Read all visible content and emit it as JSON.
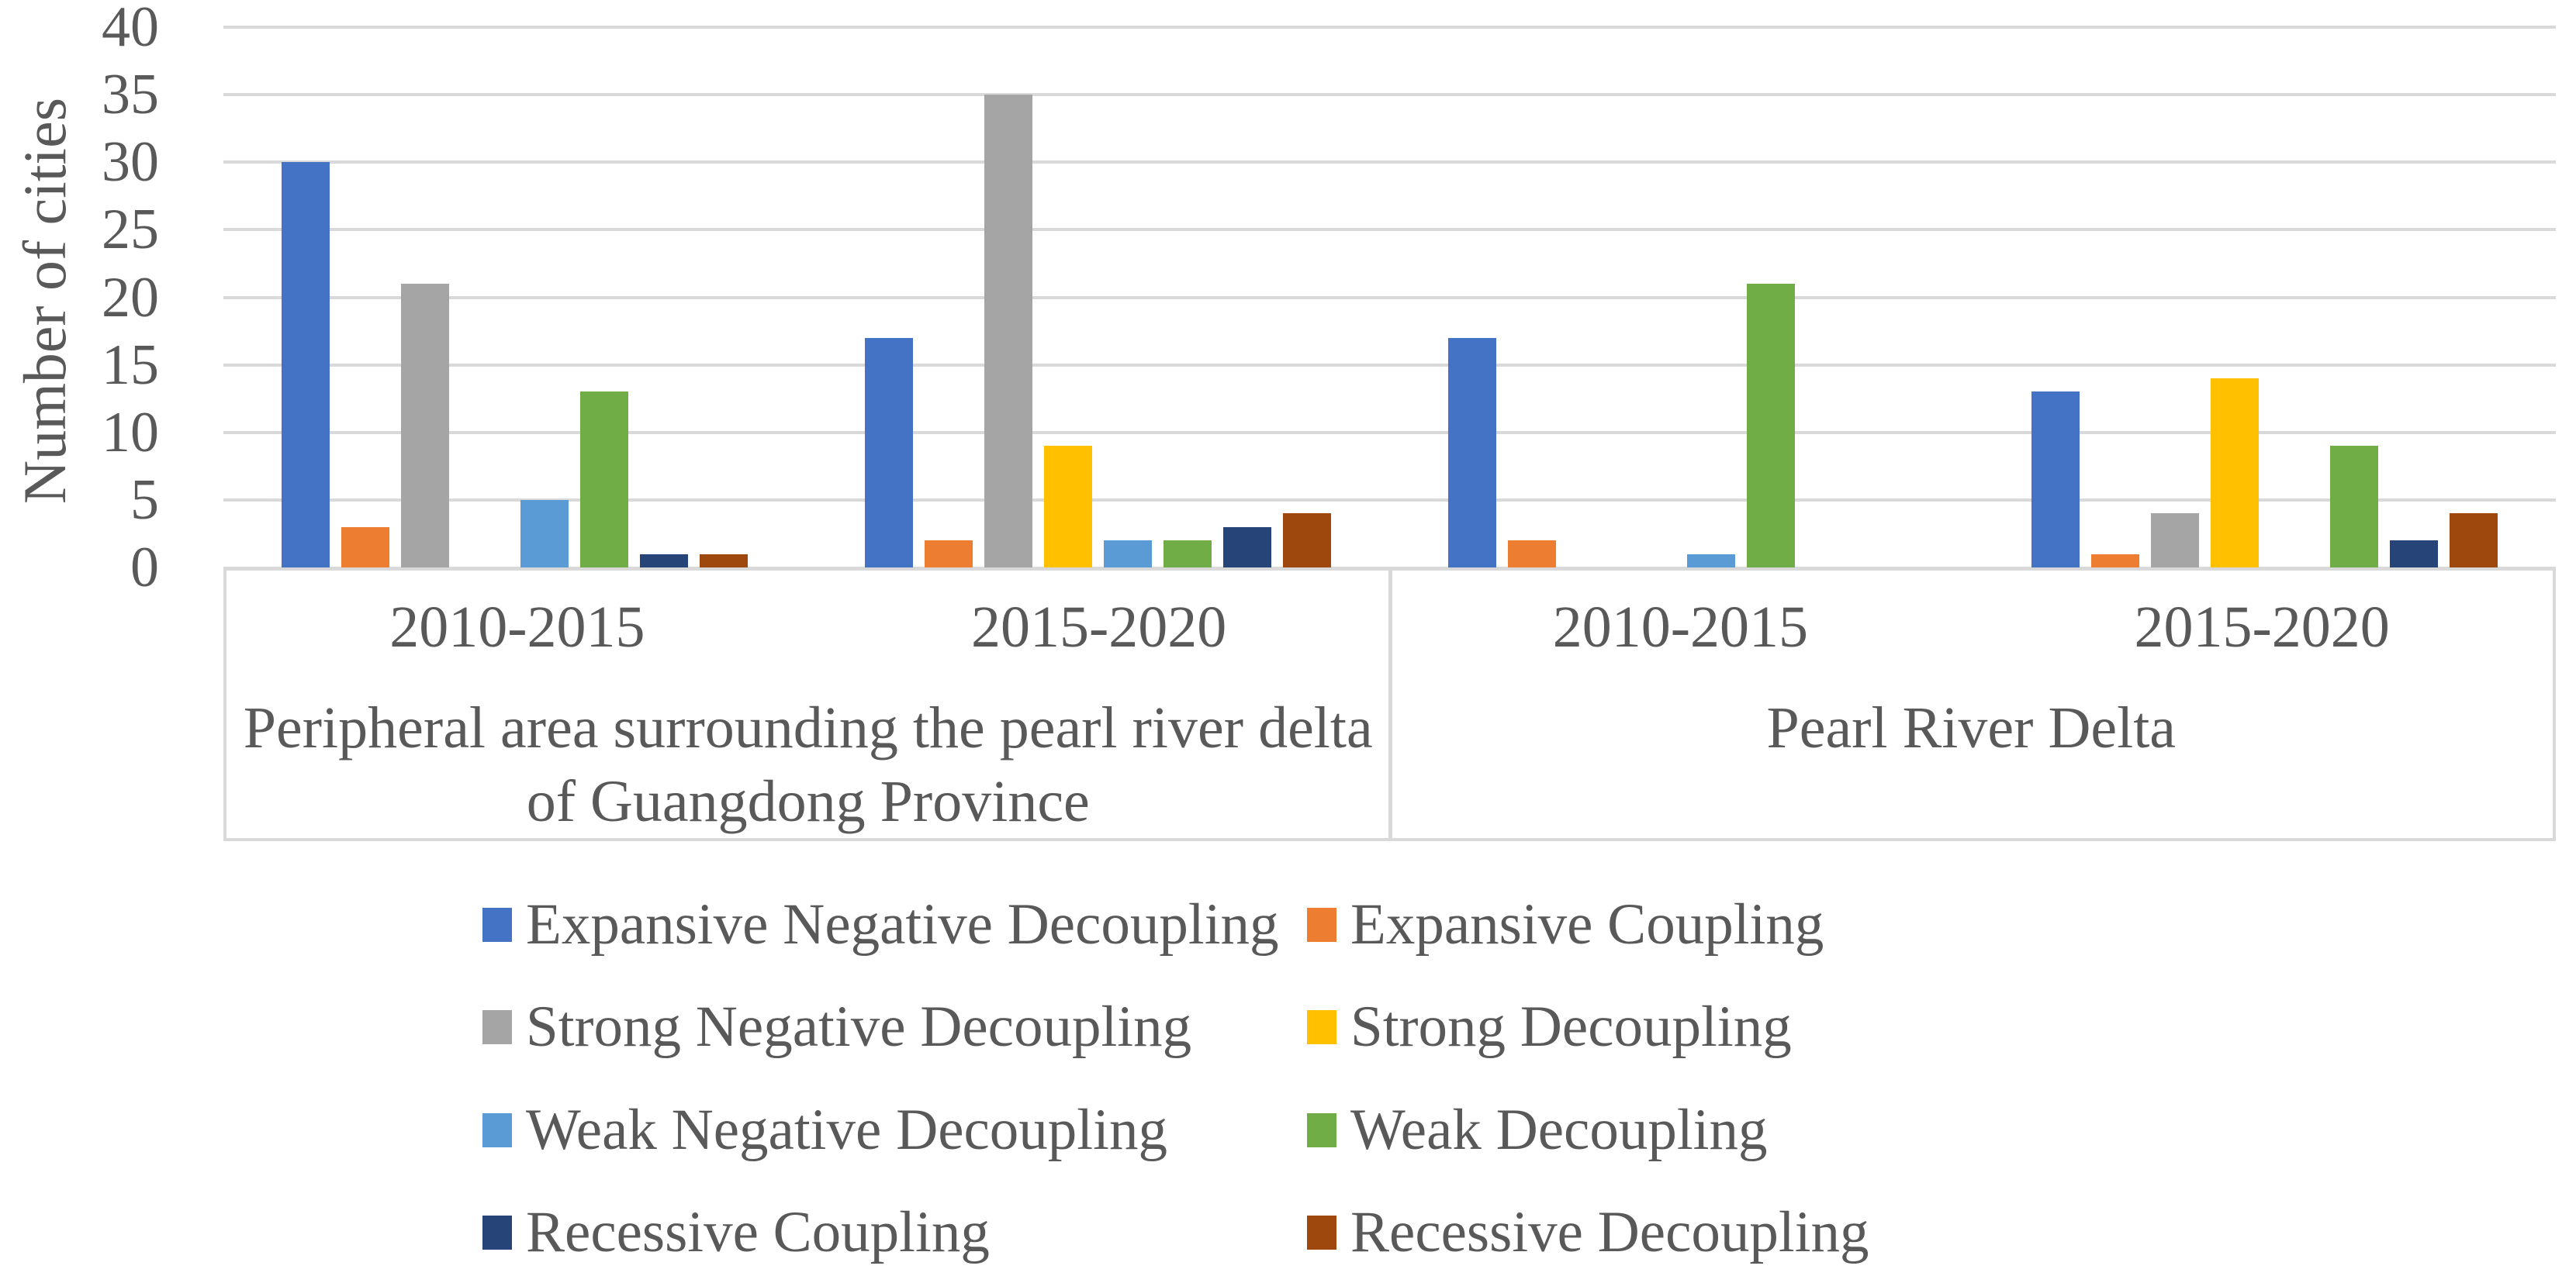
{
  "chart_data": {
    "type": "bar",
    "title": "",
    "ylabel": "Number of cities",
    "ylim": [
      0,
      40
    ],
    "yticks": [
      0,
      5,
      10,
      15,
      20,
      25,
      30,
      35,
      40
    ],
    "grid": "horizontal gridlines every 5, light gray",
    "legend_position": "bottom, 2 columns x 4 rows",
    "period_labels": [
      "2010-2015",
      "2015-2020",
      "2010-2015",
      "2015-2020"
    ],
    "regions": [
      {
        "name": "Peripheral area surrounding the pearl river delta of Guangdong Province",
        "lines": [
          "Peripheral area surrounding the pearl river delta",
          "of Guangdong Province"
        ],
        "periods": [
          "2010-2015",
          "2015-2020"
        ]
      },
      {
        "name": "Pearl River Delta",
        "lines": [
          "Pearl River Delta"
        ],
        "periods": [
          "2010-2015",
          "2015-2020"
        ]
      }
    ],
    "categories": [
      "Peripheral area surrounding the pearl river delta of Guangdong Province / 2010-2015",
      "Peripheral area surrounding the pearl river delta of Guangdong Province / 2015-2020",
      "Pearl River Delta / 2010-2015",
      "Pearl River Delta / 2015-2020"
    ],
    "series": [
      {
        "name": "Expansive Negative Decoupling",
        "color": "#4472C4",
        "values": [
          30,
          17,
          17,
          13
        ]
      },
      {
        "name": "Expansive Coupling",
        "color": "#ED7D31",
        "values": [
          3,
          2,
          2,
          1
        ]
      },
      {
        "name": "Strong Negative Decoupling",
        "color": "#A5A5A5",
        "values": [
          21,
          35,
          0,
          4
        ]
      },
      {
        "name": "Strong Decoupling",
        "color": "#FFC000",
        "values": [
          0,
          9,
          0,
          14
        ]
      },
      {
        "name": "Weak Negative Decoupling",
        "color": "#5B9BD5",
        "values": [
          5,
          2,
          1,
          0
        ]
      },
      {
        "name": "Weak Decoupling",
        "color": "#70AD47",
        "values": [
          13,
          2,
          21,
          9
        ]
      },
      {
        "name": "Recessive Coupling",
        "color": "#264478",
        "values": [
          1,
          3,
          0,
          2
        ]
      },
      {
        "name": "Recessive Decoupling",
        "color": "#9E480E",
        "values": [
          1,
          4,
          0,
          4
        ]
      }
    ]
  },
  "colors": {
    "gridline": "#D9D9D9",
    "text": "#595959",
    "background": "#FFFFFF"
  }
}
